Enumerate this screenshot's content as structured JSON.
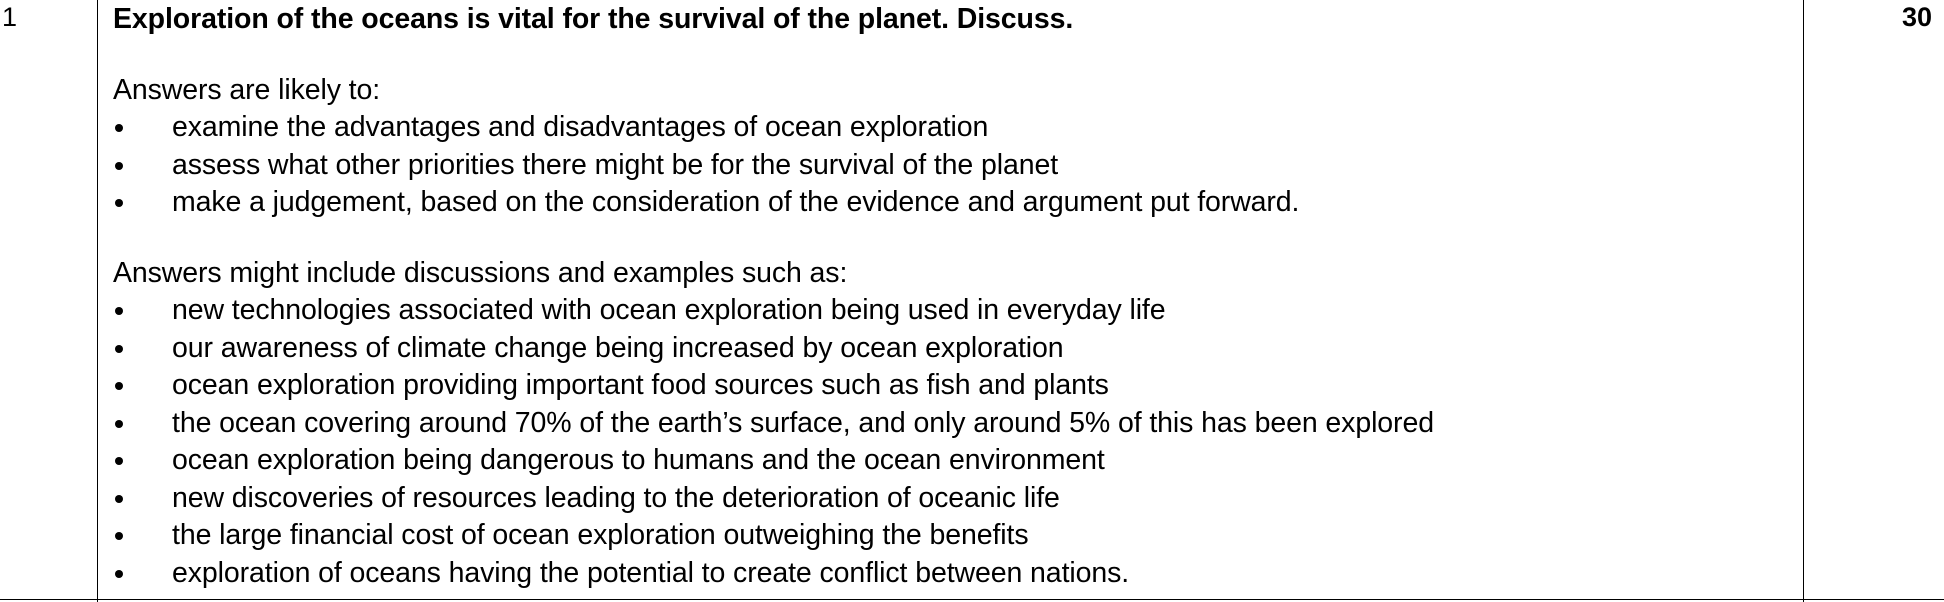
{
  "row": {
    "question_number": "1",
    "marks": "30",
    "question": "Exploration of the oceans is vital for the survival of the planet. Discuss.",
    "section_likely": {
      "intro": "Answers are likely to:",
      "items": [
        "examine the advantages and disadvantages of ocean exploration",
        "assess what other priorities there might be for the survival of the planet",
        "make a judgement, based on the consideration of the evidence and argument put forward."
      ]
    },
    "section_include": {
      "intro": "Answers might include discussions and examples such as:",
      "items": [
        "new technologies associated with ocean exploration being used in everyday life",
        "our awareness of climate change being increased by ocean exploration",
        "ocean exploration providing important food sources such as fish and plants",
        "the ocean covering around 70% of the earth’s surface, and only around 5% of this has been explored",
        "ocean exploration being dangerous to humans and the ocean environment",
        "new discoveries of resources leading to the deterioration of oceanic life",
        "the large financial cost of ocean exploration outweighing the benefits",
        "exploration of oceans having the potential to create conflict between nations."
      ]
    }
  }
}
